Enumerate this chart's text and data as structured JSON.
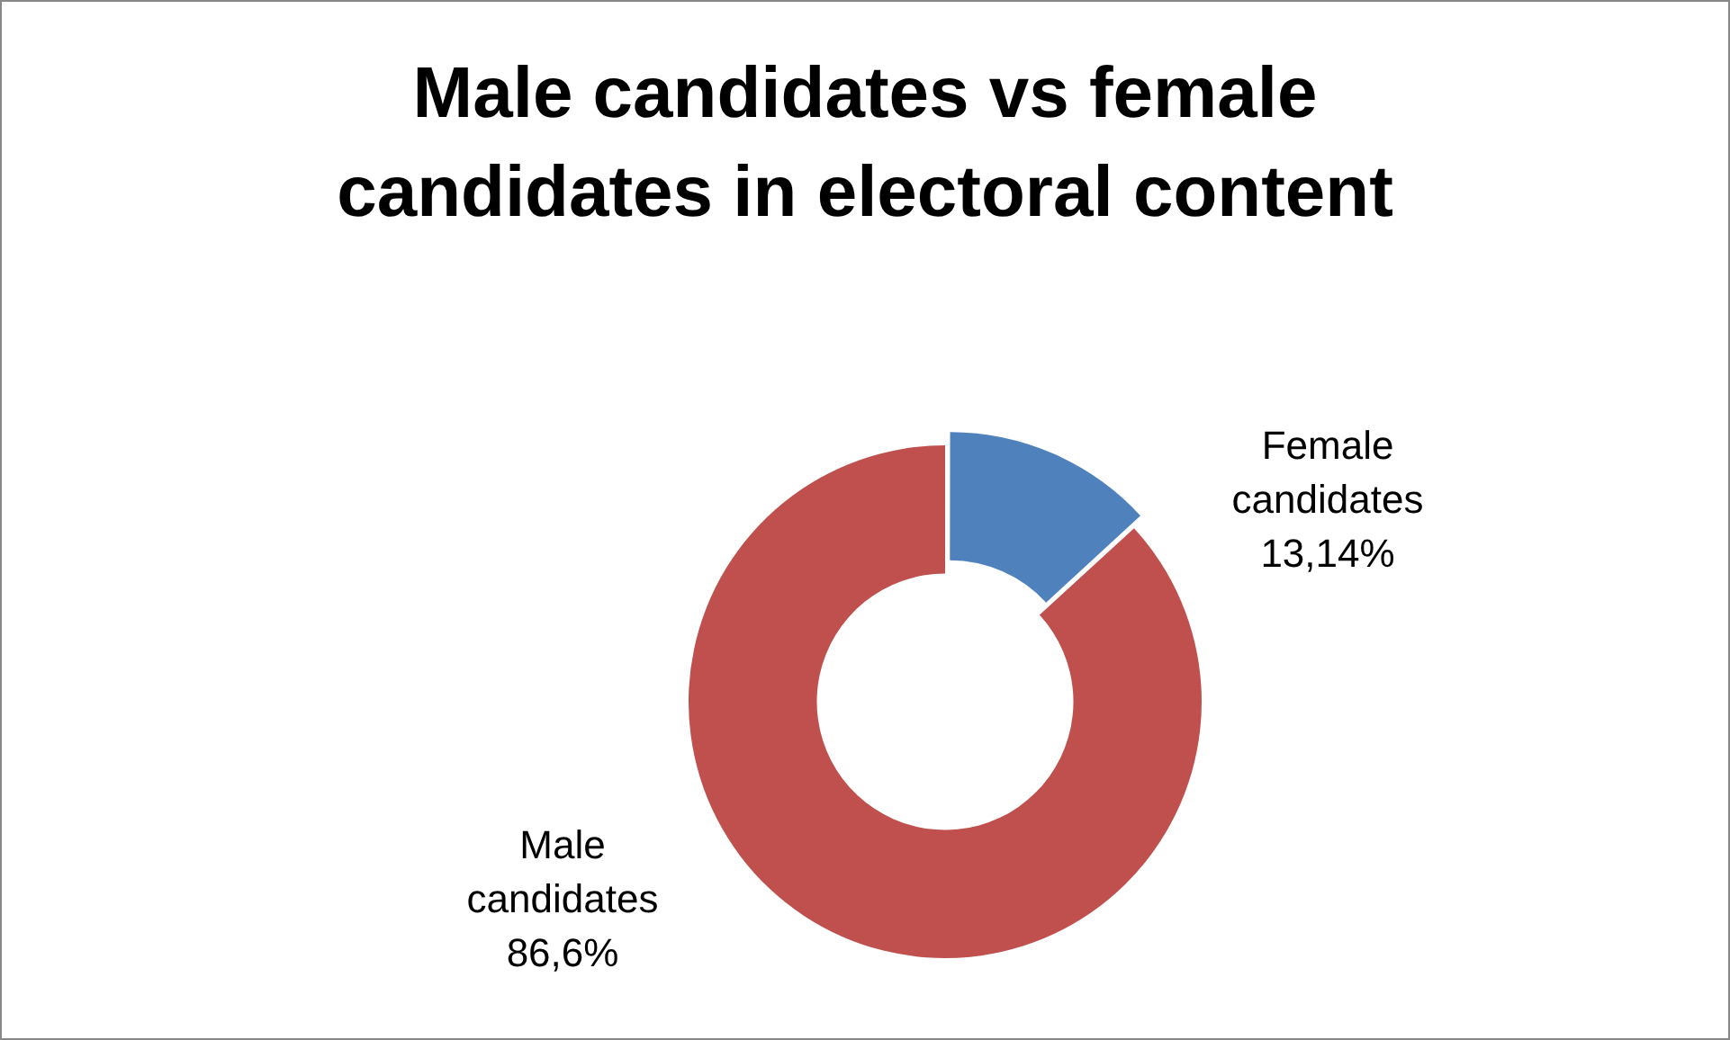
{
  "chart_data": {
    "type": "donut",
    "title": "Male candidates vs female candidates in electoral content",
    "categories": [
      "Female candidates",
      "Male candidates"
    ],
    "values": [
      13.14,
      86.6
    ],
    "value_labels": [
      "13,14%",
      "86,6%"
    ],
    "colors": [
      "#4f81bd",
      "#c0504d"
    ],
    "legend": false
  }
}
